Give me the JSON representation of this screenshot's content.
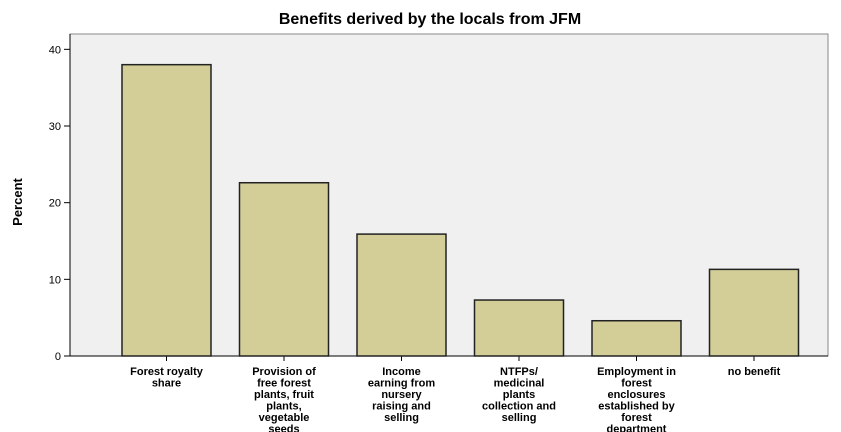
{
  "chart_data": {
    "type": "bar",
    "title": "Benefits derived by the locals from JFM",
    "xlabel": "",
    "ylabel": "Percent",
    "ylim": [
      0,
      42
    ],
    "yticks": [
      0,
      10,
      20,
      30,
      40
    ],
    "grid": false,
    "categories": [
      [
        "Forest royalty",
        "share"
      ],
      [
        "Provision of",
        "free forest",
        "plants, fruit",
        "plants,",
        "vegetable",
        "seeds"
      ],
      [
        "Income",
        "earning from",
        "nursery",
        "raising and",
        "selling"
      ],
      [
        "NTFPs/",
        "medicinal",
        "plants",
        "collection and",
        "selling"
      ],
      [
        "Employment in",
        "forest",
        "enclosures",
        "established by",
        "forest",
        "department"
      ],
      [
        "no benefit"
      ]
    ],
    "values": [
      38.0,
      22.6,
      15.9,
      7.3,
      4.6,
      11.3
    ],
    "colors": {
      "plot_bg": "#f0f0f0",
      "bar_fill": "#d3ce98",
      "bar_stroke": "#222222",
      "axis": "#000000"
    }
  }
}
